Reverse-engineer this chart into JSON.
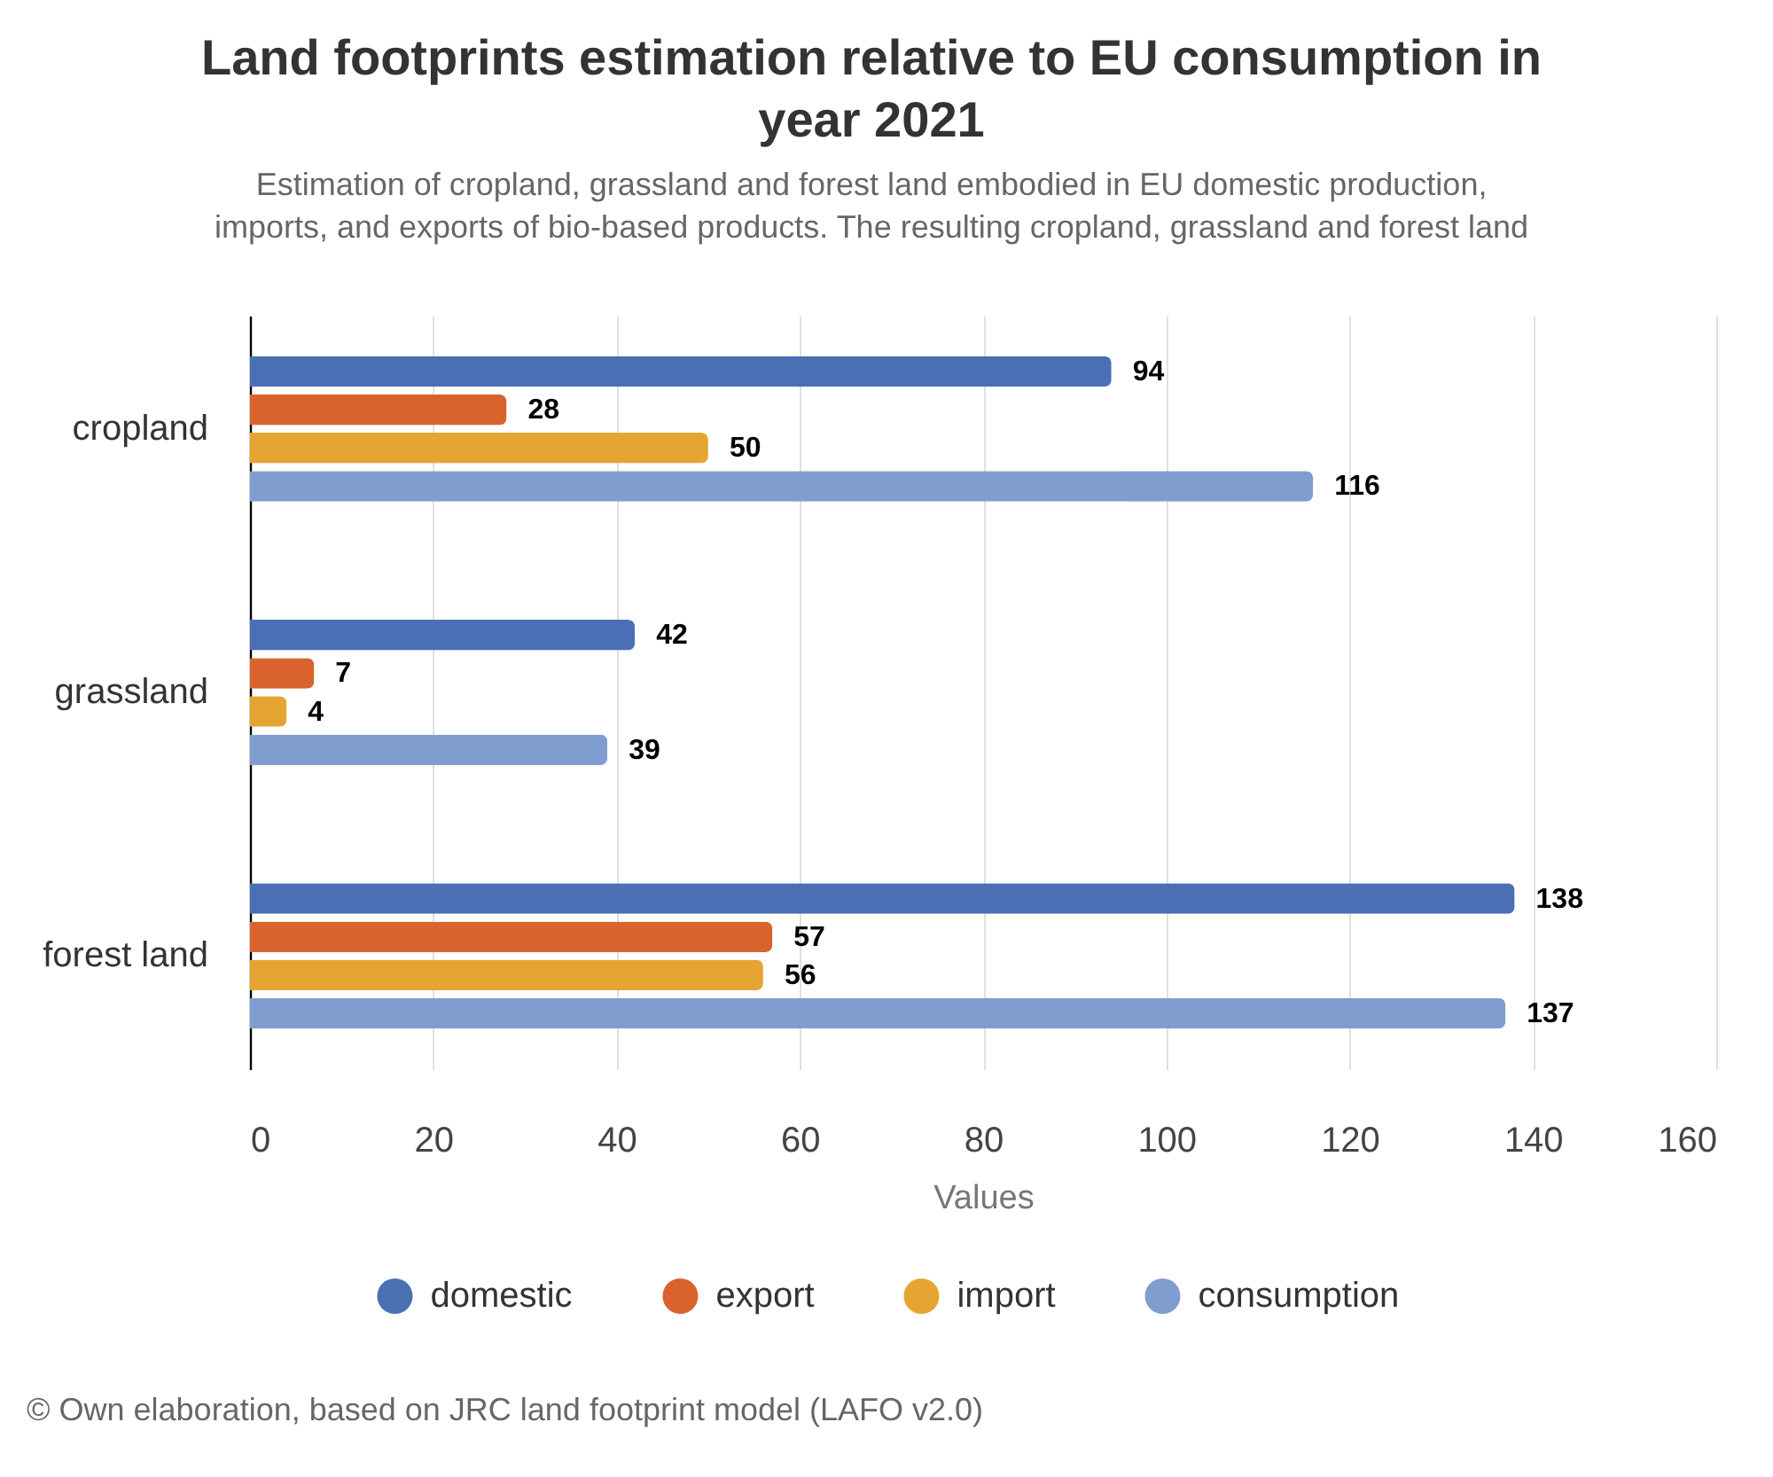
{
  "chart_data": {
    "type": "bar",
    "orientation": "horizontal",
    "title": "Land footprints estimation relative to EU consumption in year 2021",
    "subtitle": "Estimation of cropland, grassland and forest land embodied in EU domestic production, imports, and exports of bio-based products. The resulting cropland, grassland and forest land",
    "xlabel": "Values",
    "categories": [
      "cropland",
      "grassland",
      "forest land"
    ],
    "series": [
      {
        "name": "domestic",
        "color": "#4a6fb5",
        "values": [
          94,
          42,
          138
        ]
      },
      {
        "name": "export",
        "color": "#d9632c",
        "values": [
          28,
          7,
          57
        ]
      },
      {
        "name": "import",
        "color": "#e6a532",
        "values": [
          50,
          4,
          56
        ]
      },
      {
        "name": "consumption",
        "color": "#809dd0",
        "values": [
          116,
          39,
          137
        ]
      }
    ],
    "xlim": [
      0,
      160
    ],
    "xticks": [
      0,
      20,
      40,
      60,
      80,
      100,
      120,
      140,
      160
    ],
    "grid": "x",
    "legend": "bottom",
    "data_labels": true,
    "annotations": [
      "© Own elaboration, based on JRC land footprint model (LAFO v2.0)"
    ]
  }
}
